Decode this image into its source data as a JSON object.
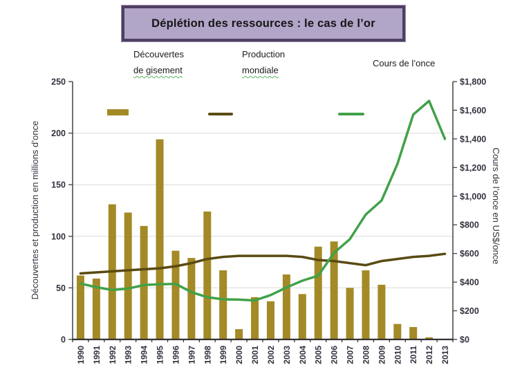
{
  "title": "Déplétion des ressources : le cas de l’or",
  "colors": {
    "bars": "#a38a26",
    "production_line": "#594a12",
    "price_line": "#41a148",
    "title_bg": "#b1a5c8",
    "title_border": "#4f3f63",
    "grid": "#d9d9d9",
    "axis": "#4d4d4d",
    "tick_text": "#333340"
  },
  "legend": {
    "discoveries": {
      "line1": "Découvertes",
      "line2": "de gisement"
    },
    "production": {
      "line1": "Production",
      "line2": "mondiale"
    },
    "price": {
      "label": "Cours de l’once"
    }
  },
  "chart_data": {
    "type": "bar+line",
    "categories": [
      "1990",
      "1991",
      "1992",
      "1993",
      "1994",
      "1995",
      "1996",
      "1997",
      "1998",
      "1999",
      "2000",
      "2001",
      "2002",
      "2003",
      "2004",
      "2005",
      "2006",
      "2007",
      "2008",
      "2009",
      "2010",
      "2011",
      "2012",
      "2013"
    ],
    "series": [
      {
        "name": "Découvertes de gisement",
        "type": "bar",
        "axis": "left",
        "values": [
          62,
          59,
          131,
          123,
          110,
          194,
          86,
          79,
          124,
          67,
          10,
          41,
          37,
          63,
          44,
          90,
          95,
          50,
          67,
          53,
          15,
          12,
          2,
          0
        ]
      },
      {
        "name": "Production mondiale",
        "type": "line",
        "axis": "left",
        "values": [
          64,
          65,
          66,
          67,
          68,
          69,
          71,
          74,
          78,
          80,
          81,
          81,
          81,
          81,
          80,
          77,
          76,
          74,
          72,
          76,
          78,
          80,
          81,
          83
        ]
      },
      {
        "name": "Cours de l’once",
        "type": "line",
        "axis": "right",
        "values": [
          390,
          365,
          345,
          355,
          380,
          385,
          388,
          330,
          295,
          280,
          278,
          272,
          310,
          363,
          410,
          445,
          604,
          700,
          872,
          970,
          1225,
          1570,
          1665,
          1400
        ]
      }
    ],
    "left_axis": {
      "label": "Découvertes et production en millions d’once",
      "min": 0,
      "max": 250,
      "step": 50
    },
    "right_axis": {
      "label": "Cours de l’once en US$/once",
      "min": 0,
      "max": 1800,
      "step": 200,
      "prefix": "$"
    },
    "grid": "horizontal, light gray, at left-axis steps 50–200",
    "legend_position": "top"
  }
}
